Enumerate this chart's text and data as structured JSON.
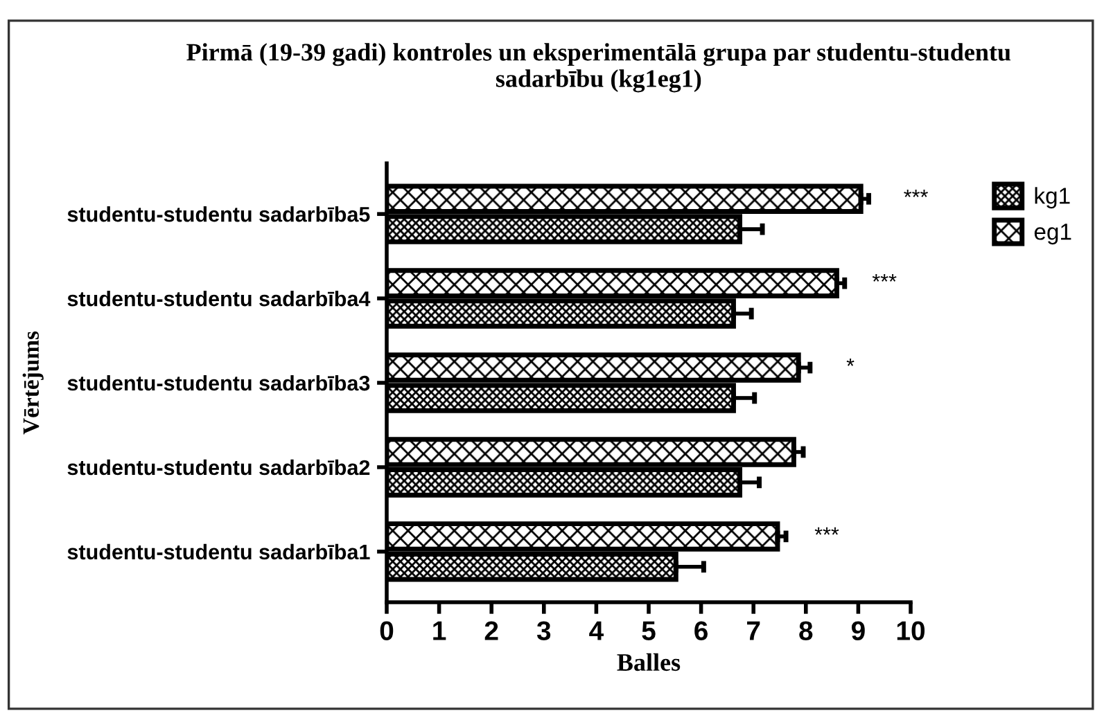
{
  "chart_data": {
    "type": "bar",
    "orientation": "horizontal",
    "title": "Pirmā (19-39 gadi) kontroles un eksperimentālā grupa par studentu-studentu sadarbību (kg1eg1)",
    "xlabel": "Balles",
    "ylabel": "Vērtējums",
    "categories": [
      "studentu-studentu sadarbība5",
      "studentu-studentu sadarbība4",
      "studentu-studentu sadarbība3",
      "studentu-studentu sadarbība2",
      "studentu-studentu sadarbība1"
    ],
    "series": [
      {
        "name": "kg1",
        "color": "#000000",
        "values": [
          6.74,
          6.62,
          6.62,
          6.74,
          5.52
        ],
        "errors": [
          0.43,
          0.34,
          0.4,
          0.37,
          0.53
        ]
      },
      {
        "name": "eg1",
        "color": "#000000",
        "values": [
          9.05,
          8.59,
          7.86,
          7.77,
          7.46
        ],
        "errors": [
          0.15,
          0.15,
          0.22,
          0.18,
          0.16
        ]
      }
    ],
    "xlim": [
      0,
      10
    ],
    "xticks": [
      0,
      1,
      2,
      3,
      4,
      5,
      6,
      7,
      8,
      9,
      10
    ],
    "grid": false,
    "legend": "top right",
    "annotations": [
      "***",
      "***",
      "*",
      "***"
    ]
  }
}
